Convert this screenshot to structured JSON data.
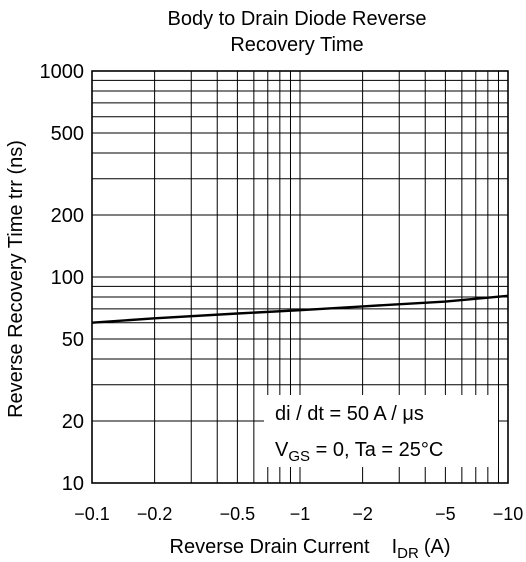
{
  "chart_data": {
    "type": "line",
    "title_lines": [
      "Body to Drain  Diode Reverse",
      "Recovery Time"
    ],
    "xlabel": {
      "main": "Reverse Drain Current",
      "symbol": "I",
      "sub": "DR",
      "unit": "(A)"
    },
    "ylabel": "Reverse Recovery Time trr  (ns)",
    "x_scale": "log",
    "y_scale": "log",
    "xlim": [
      -0.1,
      -10
    ],
    "ylim": [
      10,
      1000
    ],
    "grid": true,
    "x_ticks": [
      {
        "value": -0.1,
        "label": "−0.1"
      },
      {
        "value": -0.2,
        "label": "−0.2"
      },
      {
        "value": -0.5,
        "label": "−0.5"
      },
      {
        "value": -1,
        "label": "−1"
      },
      {
        "value": -2,
        "label": "−2"
      },
      {
        "value": -5,
        "label": "−5"
      },
      {
        "value": -10,
        "label": "−10"
      }
    ],
    "y_ticks": [
      {
        "value": 10,
        "label": "10"
      },
      {
        "value": 20,
        "label": "20"
      },
      {
        "value": 50,
        "label": "50"
      },
      {
        "value": 100,
        "label": "100"
      },
      {
        "value": 200,
        "label": "200"
      },
      {
        "value": 500,
        "label": "500"
      },
      {
        "value": 1000,
        "label": "1000"
      }
    ],
    "series": [
      {
        "x": [
          -0.1,
          -0.2,
          -0.5,
          -1,
          -2,
          -5,
          -10
        ],
        "y": [
          60,
          63,
          66.5,
          69,
          72,
          76,
          81
        ]
      }
    ],
    "annotation": {
      "line1": "di / dt = 50 A / μs",
      "line2_sym": "V",
      "line2_sub": "GS",
      "line2_rest": " = 0, Ta = 25°C"
    }
  },
  "style": {
    "line_color": "#000000",
    "grid_color": "#000000"
  }
}
